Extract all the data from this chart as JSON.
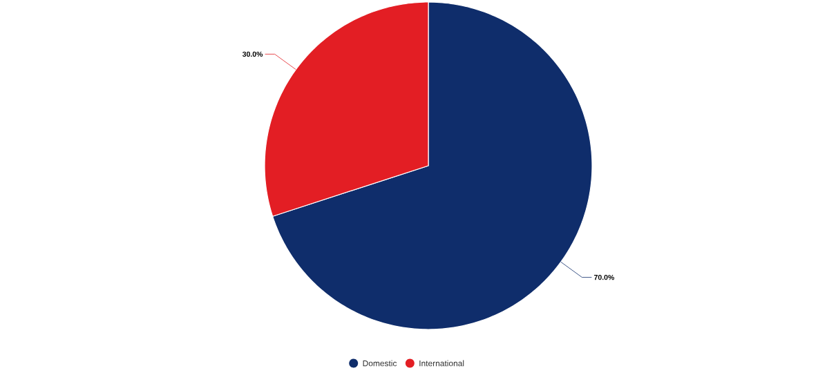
{
  "chart_data": {
    "type": "pie",
    "categories": [
      "Domestic",
      "International"
    ],
    "values": [
      70,
      30
    ],
    "colors": [
      "#0f2d6b",
      "#e31e24"
    ],
    "value_labels": [
      "70.0%",
      "30.0%"
    ],
    "legend": "bottom"
  }
}
